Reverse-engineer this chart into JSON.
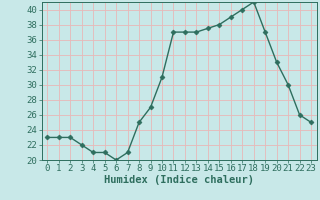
{
  "x": [
    0,
    1,
    2,
    3,
    4,
    5,
    6,
    7,
    8,
    9,
    10,
    11,
    12,
    13,
    14,
    15,
    16,
    17,
    18,
    19,
    20,
    21,
    22,
    23
  ],
  "y": [
    23,
    23,
    23,
    22,
    21,
    21,
    20,
    21,
    25,
    27,
    31,
    37,
    37,
    37,
    37.5,
    38,
    39,
    40,
    41,
    37,
    33,
    30,
    26,
    25
  ],
  "line_color": "#2e6e5e",
  "marker": "D",
  "marker_size": 2.5,
  "bg_color": "#c8e8e8",
  "grid_color": "#e8b8b8",
  "xlabel": "Humidex (Indice chaleur)",
  "ylabel": "",
  "title": "",
  "xlim": [
    -0.5,
    23.5
  ],
  "ylim": [
    20,
    41
  ],
  "yticks": [
    20,
    22,
    24,
    26,
    28,
    30,
    32,
    34,
    36,
    38,
    40
  ],
  "xticks": [
    0,
    1,
    2,
    3,
    4,
    5,
    6,
    7,
    8,
    9,
    10,
    11,
    12,
    13,
    14,
    15,
    16,
    17,
    18,
    19,
    20,
    21,
    22,
    23
  ],
  "xlabel_fontsize": 7.5,
  "tick_fontsize": 6.5,
  "figsize": [
    3.2,
    2.0
  ],
  "dpi": 100
}
